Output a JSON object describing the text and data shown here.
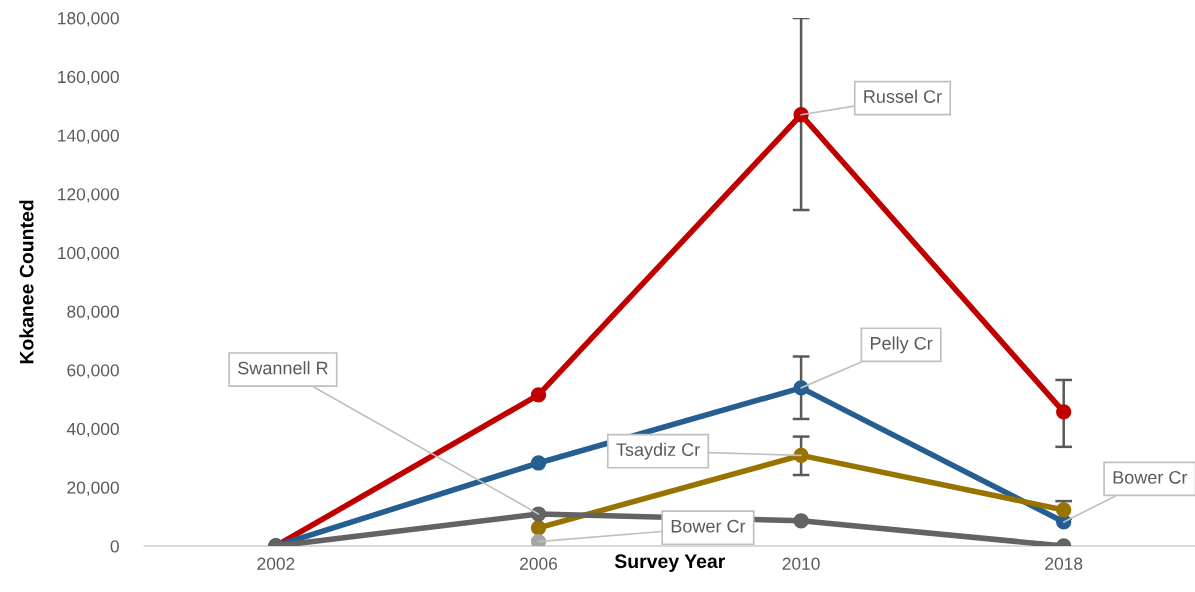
{
  "chart_data": {
    "type": "line",
    "xlabel": "Survey Year",
    "ylabel": "Kokanee Counted",
    "categories": [
      "2002",
      "2006",
      "2010",
      "2018"
    ],
    "series": [
      {
        "color": "#c00000",
        "values": [
          0,
          51500,
          147000,
          45700
        ],
        "errors": [
          null,
          null,
          [
            114500,
            180000
          ],
          [
            33800,
            56600
          ]
        ]
      },
      {
        "color": "#255e91",
        "values": [
          0,
          28300,
          53900,
          8200
        ],
        "errors": [
          null,
          null,
          [
            43300,
            64600
          ],
          null
        ]
      },
      {
        "color": "#997300",
        "values": [
          null,
          6200,
          30900,
          12300
        ],
        "errors": [
          null,
          null,
          [
            24200,
            37300
          ],
          [
            9300,
            15300
          ]
        ]
      },
      {
        "color": "#636363",
        "values": [
          0,
          10900,
          8600,
          0
        ]
      },
      {
        "color": "#a5a5a5",
        "values": [
          null,
          1500,
          null,
          null
        ]
      }
    ],
    "annotations": [
      {
        "text": "Russel Cr",
        "x": "2010",
        "y": 147000
      },
      {
        "text": "Pelly Cr",
        "x": "2010",
        "y": 53900
      },
      {
        "text": "Tsaydiz Cr",
        "x": "2010",
        "y": 30900
      },
      {
        "text": "Swannell R",
        "x": "2006",
        "y": 10900
      },
      {
        "text": "Bower Cr",
        "x": "2006",
        "y": 1500
      },
      {
        "text": "Bower Cr",
        "x": "2018",
        "y": 8200
      }
    ],
    "ylim": [
      0,
      180000
    ],
    "yticks": [
      {
        "value": 0,
        "label": "0"
      },
      {
        "value": 20000,
        "label": "20,000"
      },
      {
        "value": 40000,
        "label": "40,000"
      },
      {
        "value": 60000,
        "label": "60,000"
      },
      {
        "value": 80000,
        "label": "80,000"
      },
      {
        "value": 100000,
        "label": "100,000"
      },
      {
        "value": 120000,
        "label": "120,000"
      },
      {
        "value": 140000,
        "label": "140,000"
      },
      {
        "value": 160000,
        "label": "160,000"
      },
      {
        "value": 180000,
        "label": "180,000"
      }
    ],
    "grid": false,
    "legend": false,
    "marker": "circle",
    "line_style": "solid"
  }
}
